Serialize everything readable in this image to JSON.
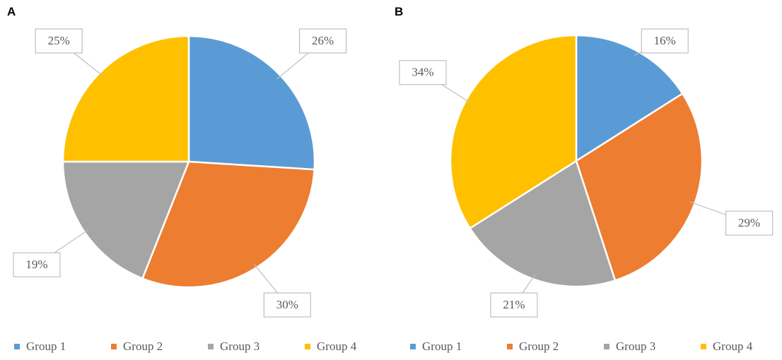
{
  "chart_data": [
    {
      "type": "pie",
      "title": "A",
      "categories": [
        "Group 1",
        "Group 2",
        "Group 3",
        "Group 4"
      ],
      "values": [
        26,
        30,
        19,
        25
      ],
      "value_labels": [
        "26%",
        "30%",
        "19%",
        "25%"
      ],
      "colors": [
        "#5b9bd5",
        "#ed7d31",
        "#a5a5a5",
        "#ffc000"
      ]
    },
    {
      "type": "pie",
      "title": "B",
      "categories": [
        "Group 1",
        "Group 2",
        "Group 3",
        "Group 4"
      ],
      "values": [
        16,
        29,
        21,
        34
      ],
      "value_labels": [
        "16%",
        "29%",
        "21%",
        "34%"
      ],
      "colors": [
        "#5b9bd5",
        "#ed7d31",
        "#a5a5a5",
        "#ffc000"
      ]
    }
  ]
}
